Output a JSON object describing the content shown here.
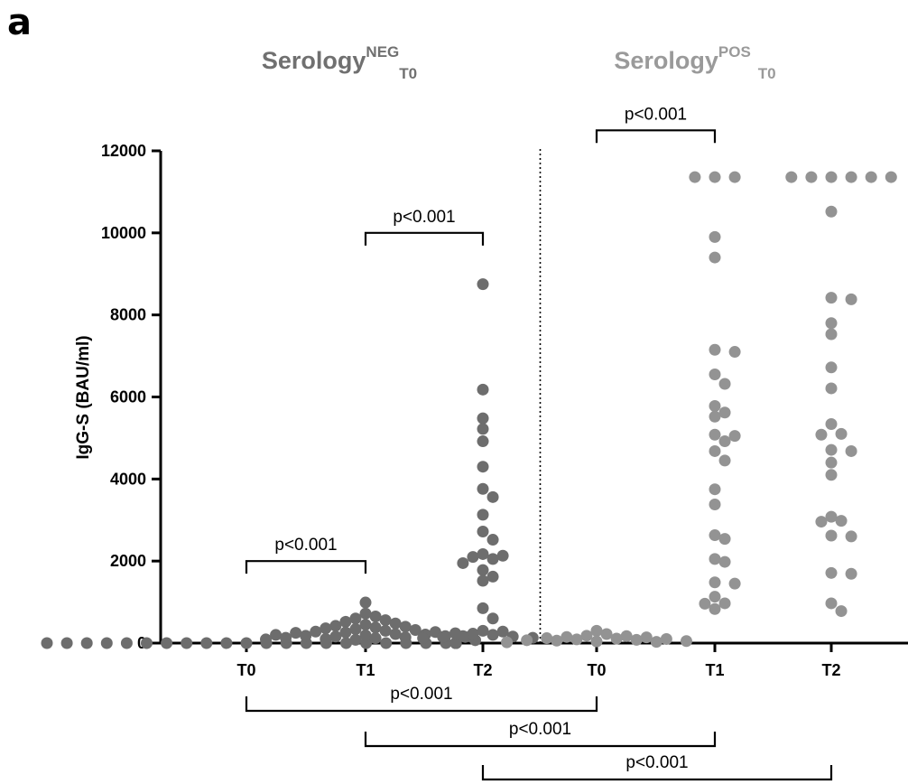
{
  "panel_label": "a",
  "chart_data": {
    "type": "scatter",
    "group_titles": [
      {
        "base": "Serology",
        "sup": "NEG",
        "sub": "T0",
        "color": "#707070"
      },
      {
        "base": "Serology",
        "sup": "POS",
        "sub": "T0",
        "color": "#9a9a9a"
      }
    ],
    "ylabel": "IgG-S (BAU/ml)",
    "ylim": [
      0,
      12000
    ],
    "yticks": [
      "0",
      "2000",
      "4000",
      "6000",
      "8000",
      "10000",
      "12000"
    ],
    "categories": [
      "T0",
      "T1",
      "T2",
      "T0",
      "T1",
      "T2"
    ],
    "series": [
      {
        "group": "Serology NEG T0",
        "category": "T0",
        "color": "#6d6d6d",
        "values": [
          0,
          0,
          0,
          0,
          0,
          0,
          0,
          0,
          0,
          0,
          0,
          0,
          0,
          0,
          0,
          0,
          0,
          0,
          0,
          0,
          0,
          0,
          0,
          0,
          0,
          0,
          0,
          0,
          0,
          0,
          0,
          0,
          0,
          0,
          0,
          0,
          0,
          0,
          0,
          0
        ]
      },
      {
        "group": "Serology NEG T1",
        "category": "T1",
        "color": "#6d6d6d",
        "values": [
          990,
          720,
          650,
          600,
          560,
          520,
          480,
          450,
          420,
          400,
          380,
          360,
          340,
          320,
          300,
          280,
          270,
          260,
          250,
          240,
          220,
          210,
          200,
          190,
          180,
          170,
          160,
          150,
          140,
          130,
          120,
          100,
          90,
          80,
          70
        ]
      },
      {
        "group": "Serology NEG T2",
        "category": "T2",
        "color": "#6d6d6d",
        "values": [
          8750,
          6180,
          5480,
          5220,
          4920,
          4300,
          3760,
          3560,
          3130,
          2720,
          2520,
          2170,
          2130,
          2100,
          2050,
          1950,
          1780,
          1620,
          1520,
          850,
          600,
          300,
          280,
          230,
          200,
          170,
          160,
          150,
          130,
          120
        ]
      },
      {
        "group": "Serology POS T0",
        "category": "T0",
        "color": "#939393",
        "values": [
          300,
          220,
          180,
          170,
          150,
          140,
          120,
          110,
          100,
          90,
          80,
          70,
          60,
          50,
          40,
          30,
          20
        ]
      },
      {
        "group": "Serology POS T1",
        "category": "T1",
        "color": "#939393",
        "values": [
          11360,
          11360,
          11360,
          9900,
          9400,
          7150,
          7100,
          6550,
          6320,
          5780,
          5620,
          5520,
          5080,
          5050,
          4920,
          4680,
          4450,
          3750,
          3380,
          2630,
          2540,
          2050,
          1980,
          1480,
          1450,
          1130,
          970,
          960,
          830
        ]
      },
      {
        "group": "Serology POS T2",
        "category": "T2",
        "color": "#939393",
        "values": [
          11360,
          11360,
          11360,
          11360,
          11360,
          11360,
          10520,
          8420,
          8380,
          7800,
          7530,
          6720,
          6210,
          5340,
          5100,
          5080,
          4710,
          4680,
          4400,
          4100,
          3080,
          2980,
          2960,
          2620,
          2600,
          1710,
          1690,
          970,
          780
        ]
      }
    ],
    "comparisons": [
      {
        "from": 0,
        "to": 1,
        "label": "p<0.001",
        "position": "above",
        "level": 2000
      },
      {
        "from": 1,
        "to": 2,
        "label": "p<0.001",
        "position": "above",
        "level": 10000
      },
      {
        "from": 3,
        "to": 4,
        "label": "p<0.001",
        "position": "above",
        "level": 12500
      },
      {
        "from": 0,
        "to": 3,
        "label": "p<0.001",
        "position": "below",
        "tier": 1
      },
      {
        "from": 1,
        "to": 4,
        "label": "p<0.001",
        "position": "below",
        "tier": 2
      },
      {
        "from": 2,
        "to": 5,
        "label": "p<0.001",
        "position": "below",
        "tier": 3
      }
    ],
    "divider": "between T2 (NEG) and T0 (POS), dotted",
    "grid": false,
    "legend": "none"
  }
}
